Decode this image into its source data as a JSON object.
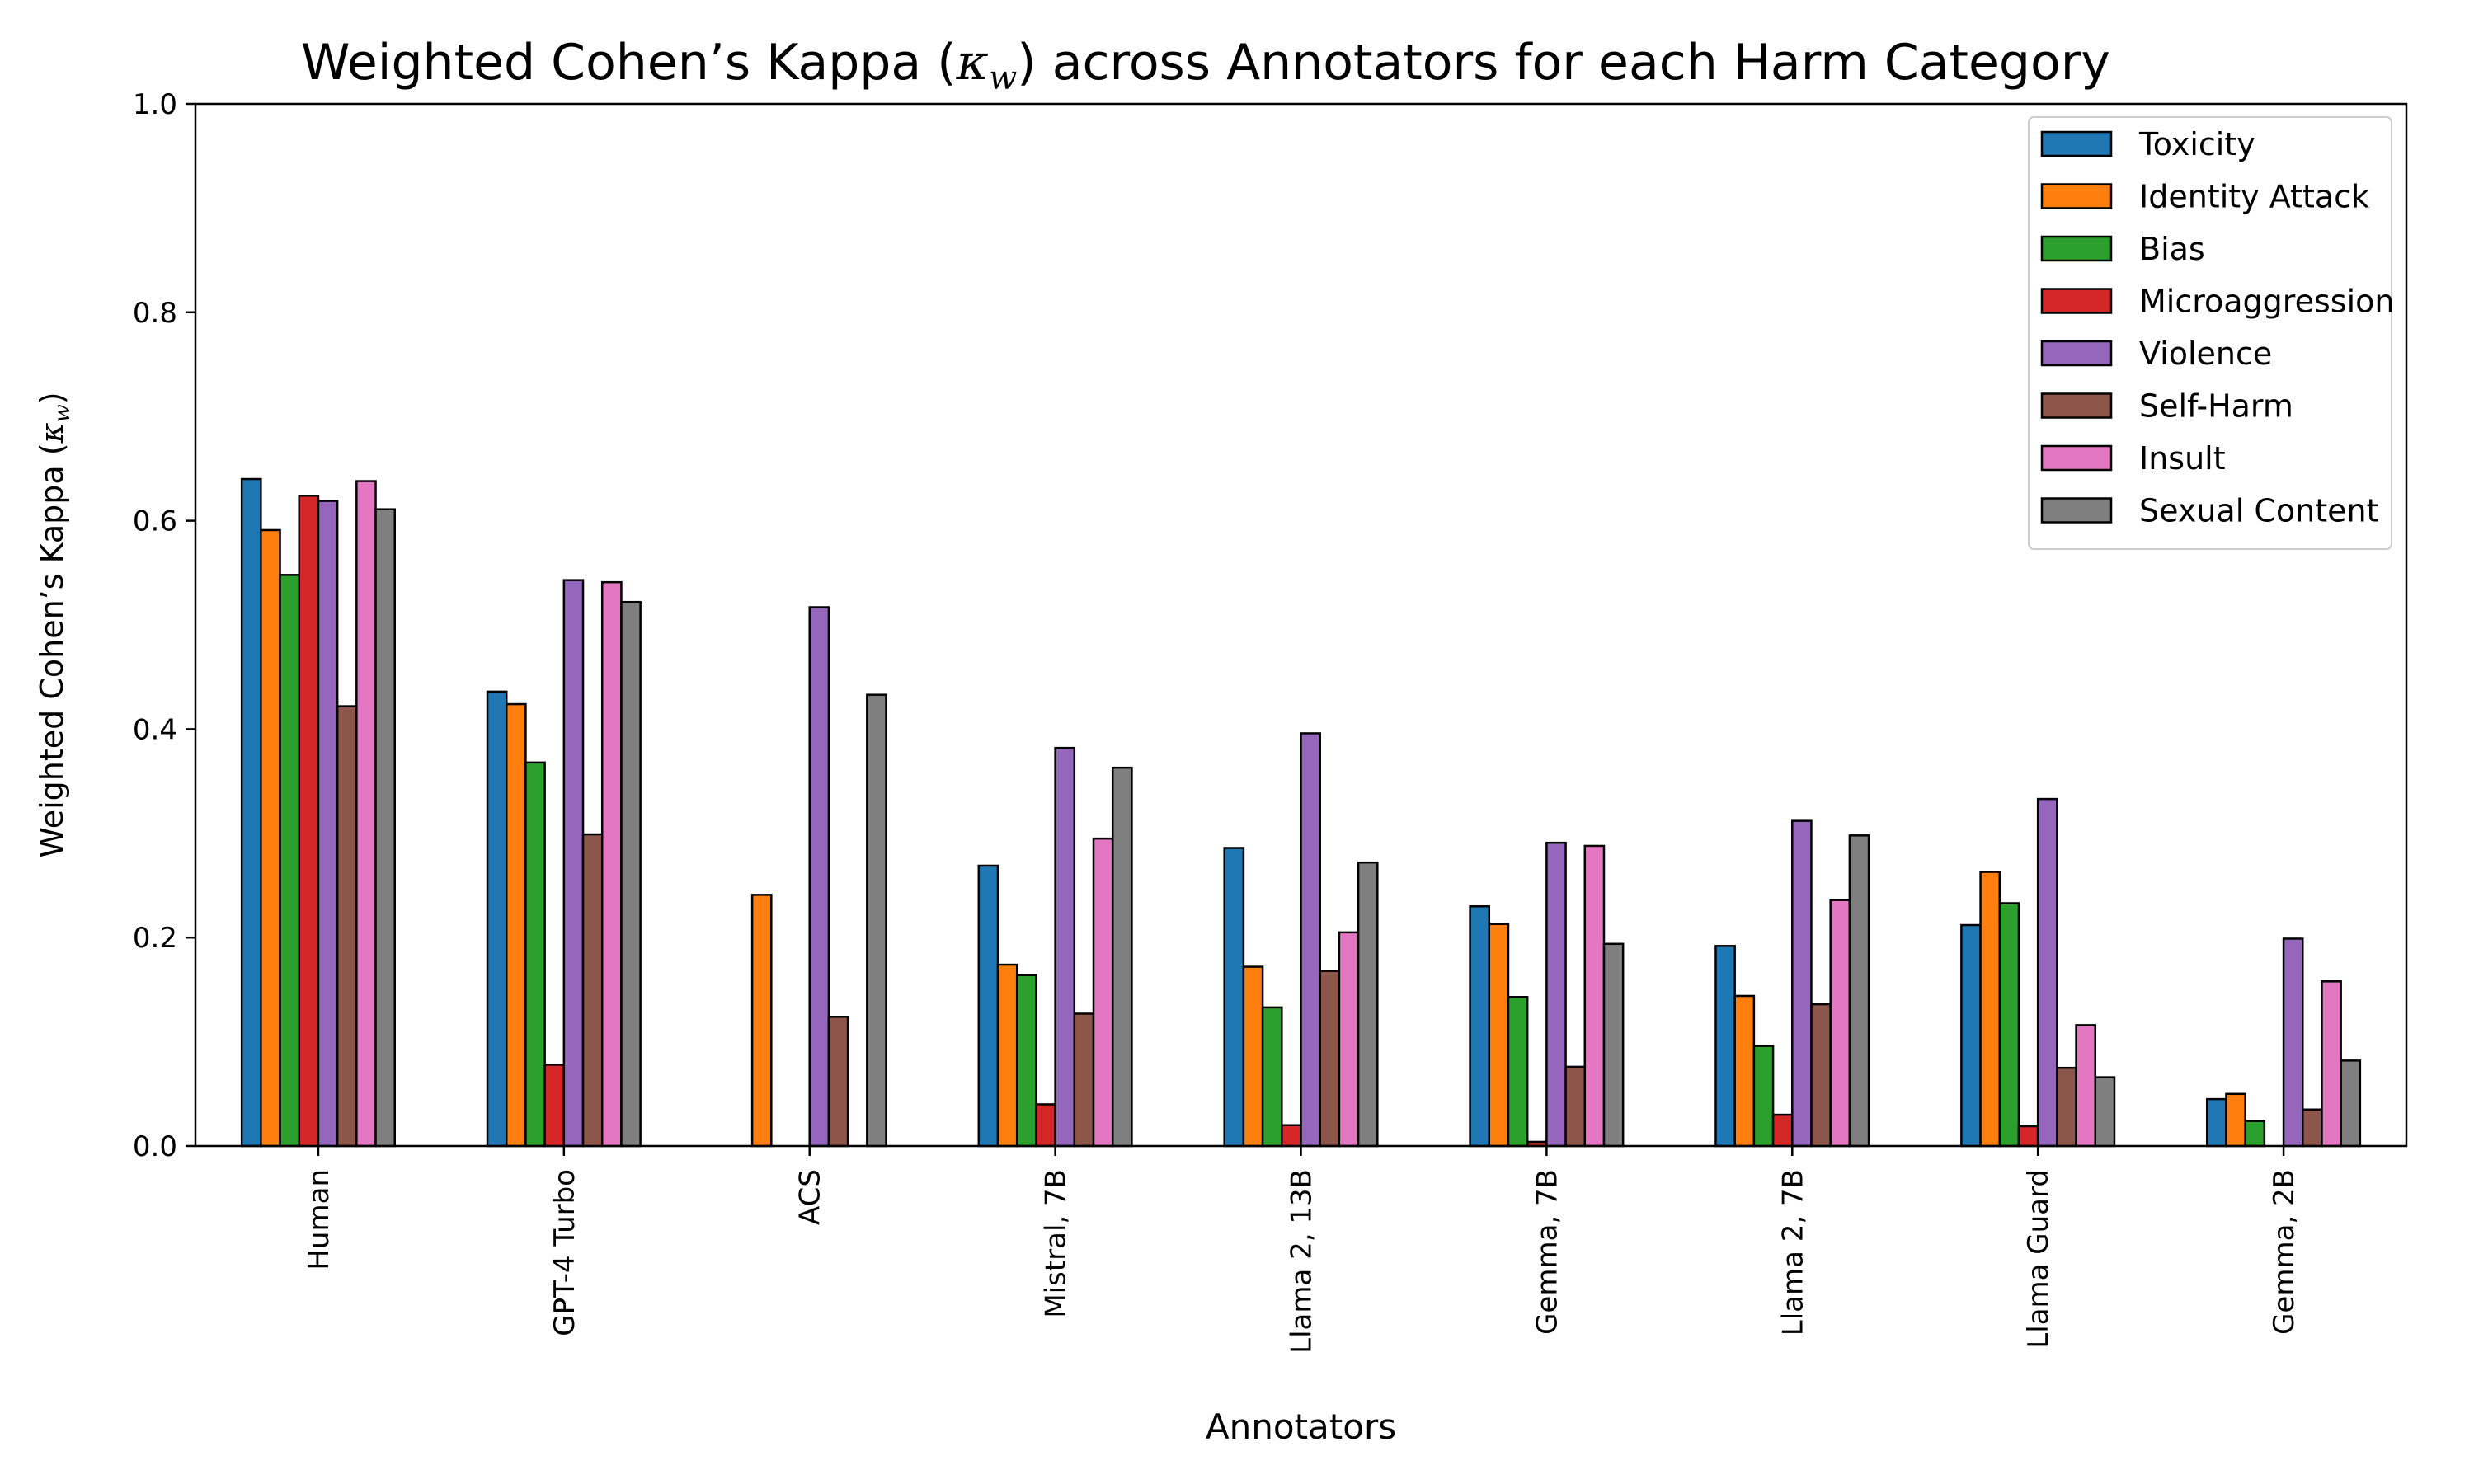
{
  "chart_data": {
    "type": "bar",
    "title_main": "Weighted Cohen’s Kappa (",
    "title_symbol": "κ",
    "title_sub": "w",
    "title_rest": ") across Annotators for each Harm Category",
    "xlabel": "Annotators",
    "ylabel_main": "Weighted Cohen’s Kappa (",
    "ylabel_symbol": "κ",
    "ylabel_sub": "w",
    "ylabel_close": ")",
    "ylim": [
      0,
      1.0
    ],
    "yticks": [
      0.0,
      0.2,
      0.4,
      0.6,
      0.8,
      1.0
    ],
    "ytick_labels": [
      "0.0",
      "0.2",
      "0.4",
      "0.6",
      "0.8",
      "1.0"
    ],
    "legend_position": "top-right",
    "categories": [
      "Human",
      "GPT-4 Turbo",
      "ACS",
      "Mistral, 7B",
      "Llama 2, 13B",
      "Gemma, 7B",
      "Llama 2, 7B",
      "Llama Guard",
      "Gemma, 2B"
    ],
    "series": [
      {
        "name": "Toxicity",
        "color": "#1f77b4",
        "values": [
          0.64,
          0.436,
          0.0,
          0.269,
          0.286,
          0.23,
          0.192,
          0.212,
          0.045
        ]
      },
      {
        "name": "Identity Attack",
        "color": "#ff7f0e",
        "values": [
          0.591,
          0.424,
          0.241,
          0.174,
          0.172,
          0.213,
          0.144,
          0.263,
          0.05
        ]
      },
      {
        "name": "Bias",
        "color": "#2ca02c",
        "values": [
          0.548,
          0.368,
          0.0,
          0.164,
          0.133,
          0.143,
          0.096,
          0.233,
          0.024
        ]
      },
      {
        "name": "Microaggression",
        "color": "#d62728",
        "values": [
          0.624,
          0.078,
          0.0,
          0.04,
          0.02,
          0.004,
          0.03,
          0.019,
          0.0
        ]
      },
      {
        "name": "Violence",
        "color": "#9467bd",
        "values": [
          0.619,
          0.543,
          0.517,
          0.382,
          0.396,
          0.291,
          0.312,
          0.333,
          0.199
        ]
      },
      {
        "name": "Self-Harm",
        "color": "#8c564b",
        "values": [
          0.422,
          0.299,
          0.124,
          0.127,
          0.168,
          0.076,
          0.136,
          0.075,
          0.035
        ]
      },
      {
        "name": "Insult",
        "color": "#e377c2",
        "values": [
          0.638,
          0.541,
          0.0,
          0.295,
          0.205,
          0.288,
          0.236,
          0.116,
          0.158
        ]
      },
      {
        "name": "Sexual Content",
        "color": "#7f7f7f",
        "values": [
          0.611,
          0.522,
          0.433,
          0.363,
          0.272,
          0.194,
          0.298,
          0.066,
          0.082
        ]
      }
    ]
  }
}
